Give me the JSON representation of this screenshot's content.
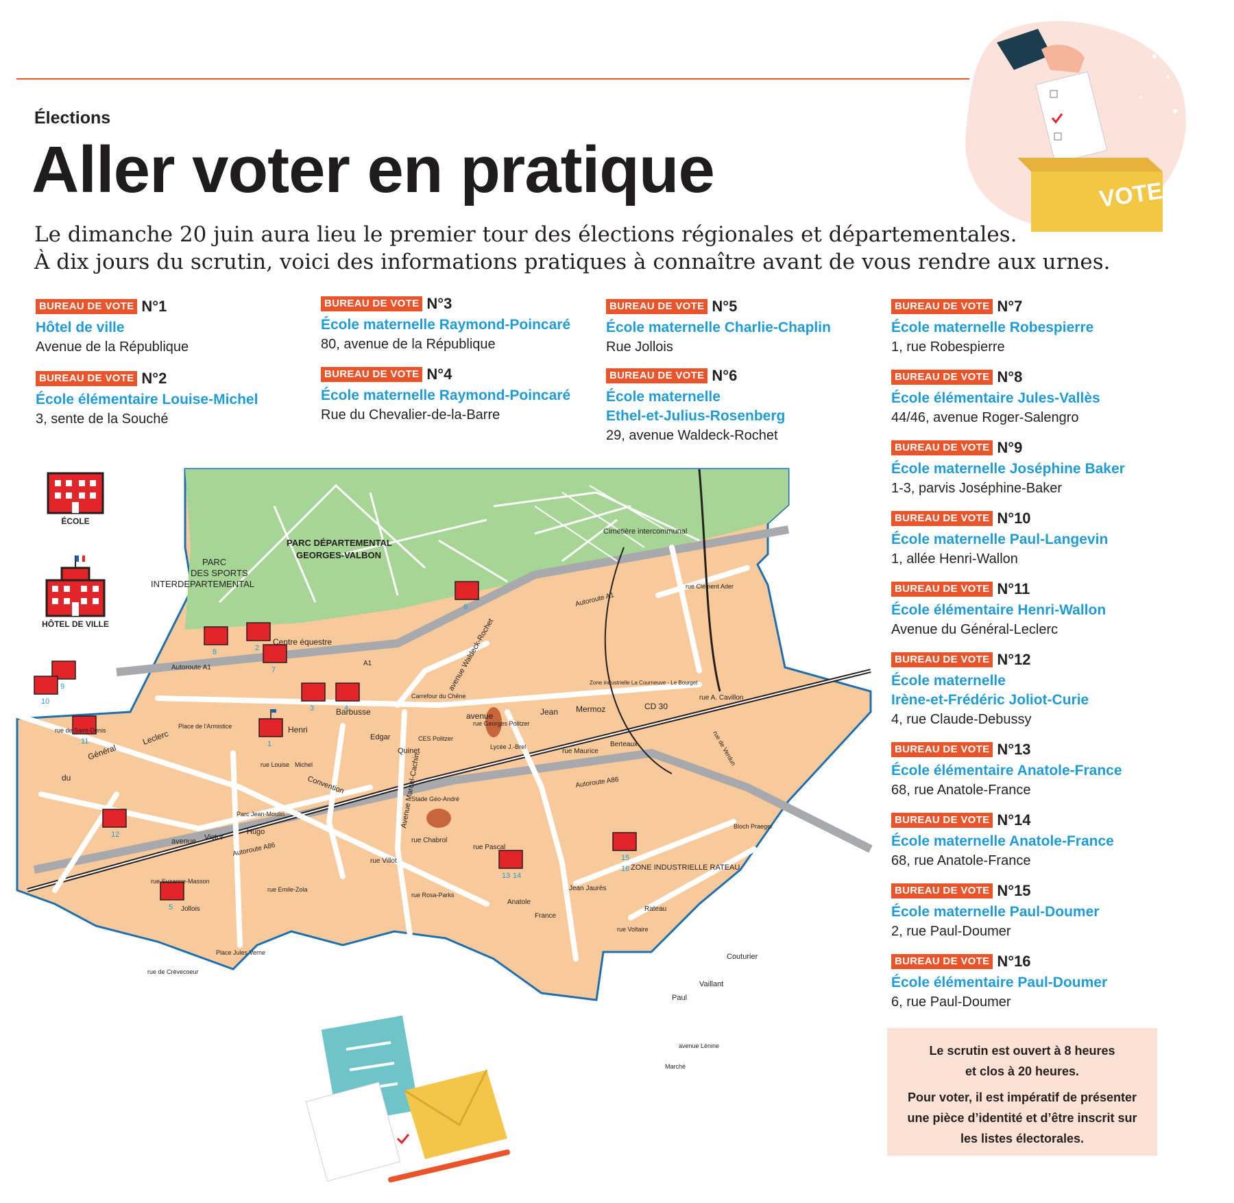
{
  "header": {
    "section": "Élections",
    "title": "Aller voter en pratique",
    "intro_line1": "Le dimanche 20 juin aura lieu le premier tour des élections régionales et départementales.",
    "intro_line2": "À dix jours du scrutin, voici des informations pratiques à connaître avant de vous rendre aux urnes."
  },
  "illustration": {
    "vote_label": "VOTE"
  },
  "badge_label": "BUREAU DE VOTE",
  "bureaus": [
    {
      "num": "N°1",
      "name": "Hôtel de ville",
      "addr": "Avenue de la République"
    },
    {
      "num": "N°2",
      "name": "École élémentaire Louise-Michel",
      "addr": "3, sente de la Souché"
    },
    {
      "num": "N°3",
      "name": "École maternelle Raymond-Poincaré",
      "addr": "80, avenue de la République"
    },
    {
      "num": "N°4",
      "name": "École maternelle Raymond-Poincaré",
      "addr": "Rue du Chevalier-de-la-Barre"
    },
    {
      "num": "N°5",
      "name": "École maternelle Charlie-Chaplin",
      "addr": "Rue Jollois"
    },
    {
      "num": "N°6",
      "name": "École maternelle",
      "name2": "Ethel-et-Julius-Rosenberg",
      "addr": "29, avenue Waldeck-Rochet"
    },
    {
      "num": "N°7",
      "name": "École maternelle Robespierre",
      "addr": "1, rue Robespierre"
    },
    {
      "num": "N°8",
      "name": "École élémentaire Jules-Vallès",
      "addr": "44/46, avenue Roger-Salengro"
    },
    {
      "num": "N°9",
      "name": "École maternelle Joséphine Baker",
      "addr": "1-3, parvis Joséphine-Baker"
    },
    {
      "num": "N°10",
      "name": "École maternelle Paul-Langevin",
      "addr": "1, allée Henri-Wallon"
    },
    {
      "num": "N°11",
      "name": "École élémentaire Henri-Wallon",
      "addr": "Avenue du Général-Leclerc"
    },
    {
      "num": "N°12",
      "name": "École maternelle",
      "name2": "Irène-et-Frédéric Joliot-Curie",
      "addr": "4, rue Claude-Debussy"
    },
    {
      "num": "N°13",
      "name": "École élémentaire Anatole-France",
      "addr": "68, rue Anatole-France"
    },
    {
      "num": "N°14",
      "name": "École maternelle Anatole-France",
      "addr": "68, rue Anatole-France"
    },
    {
      "num": "N°15",
      "name": "École maternelle Paul-Doumer",
      "addr": "2, rue Paul-Doumer"
    },
    {
      "num": "N°16",
      "name": "École élémentaire Paul-Doumer",
      "addr": "6, rue Paul-Doumer"
    }
  ],
  "legend": {
    "school": "ÉCOLE",
    "townhall": "HÔTEL DE VILLE"
  },
  "info": {
    "line1": "Le scrutin est ouvert à 8 heures",
    "line2": "et clos à 20 heures.",
    "line3": "Pour voter, il est impératif de présenter",
    "line4": "une pièce d’identité et d’être inscrit sur",
    "line5": "les listes électorales."
  },
  "map": {
    "park1": "PARC DÉPARTEMENTAL",
    "park2": "GEORGES-VALBON",
    "sports1": "PARC",
    "sports2": "DES SPORTS",
    "sports3": "INTERDEPARTEMENTAL",
    "cemetery": "Cimetière intercommunal",
    "equestrian": "Centre équestre",
    "a1_a": "Autoroute A1",
    "a1_b": "Autoroute A1",
    "a1_c": "A1",
    "a86_a": "Autoroute A86",
    "a86_b": "Autoroute A86",
    "zone_rateau": "ZONE INDUSTRIELLE RATEAU",
    "zone_courneuve": "Zone industrielle La Courneuve - Le Bourget",
    "barbusse": "Barbusse",
    "henri": "Henri",
    "avenue_jean": "avenue",
    "jean": "Jean",
    "mermoz": "Mermoz",
    "cd30": "CD 30",
    "carrefour": "Carrefour du Chêne",
    "waldeck": "avenue Waldeck-Rochet",
    "marcel_cachin": "Avenue Marcel-Cachin",
    "general": "Général",
    "leclerc": "Leclerc",
    "du": "du",
    "avenue_v": "avenue",
    "victor": "Victor",
    "hugo": "Hugo",
    "convention": "Convention",
    "place_armistice": "Place de l'Armistice",
    "parc_moulin": "Parc Jean-Moulin",
    "place_verne": "Place Jules Verne",
    "stade_geo": "Stade Géo-André",
    "lycee": "Lycée J.-Brel",
    "ces": "CES Politzer",
    "rue_saint_denis": "rue de Saint-Denis",
    "rue_crevecoeur": "rue de Crèvecoeur",
    "rue_verdun": "rue de Verdun",
    "rue_rateau": "Rateau",
    "rue_chabrol": "rue Chabrol",
    "rue_pascal": "rue Pascal",
    "rue_jollois": "Jollois",
    "rue_villot": "rue Villot",
    "rue_maurice": "rue Maurice",
    "rue_berteaux": "Berteaux",
    "rue_suzanne": "rue Suzanne-Masson",
    "rue_rosa": "rue Rosa-Parks",
    "rue_zola": "rue Emile-Zola",
    "rue_voltaire": "rue Voltaire",
    "rue_paul": "Paul",
    "rue_vaillant": "Vaillant",
    "rue_couturier": "Couturier",
    "rue_lenine": "avenue Lénine",
    "marche": "Marché",
    "bloch": "Bloch Praeger",
    "rue_clement": "rue Clément Ader",
    "rue_cavillon": "rue A. Cavillon",
    "rue_michel": "Michel",
    "rue_louise": "rue Louise",
    "rue_edgar": "Edgar",
    "quinet": "Quinet",
    "rue_politzer": "rue Georges Politzer",
    "rue_anatole": "Anatole",
    "rue_france": "France",
    "rue_jean_jaures": "Jean Jaurès",
    "labels_numbers": [
      "1",
      "2",
      "3",
      "4",
      "5",
      "6",
      "7",
      "8",
      "9",
      "10",
      "11",
      "12",
      "13",
      "14",
      "15",
      "16"
    ]
  },
  "colors": {
    "accent": "#e9542a",
    "link": "#1f9bd8",
    "map_fill": "#f8c99a",
    "park": "#a6d595",
    "border": "#1c6fb0",
    "school_icon": "#e3252a"
  }
}
